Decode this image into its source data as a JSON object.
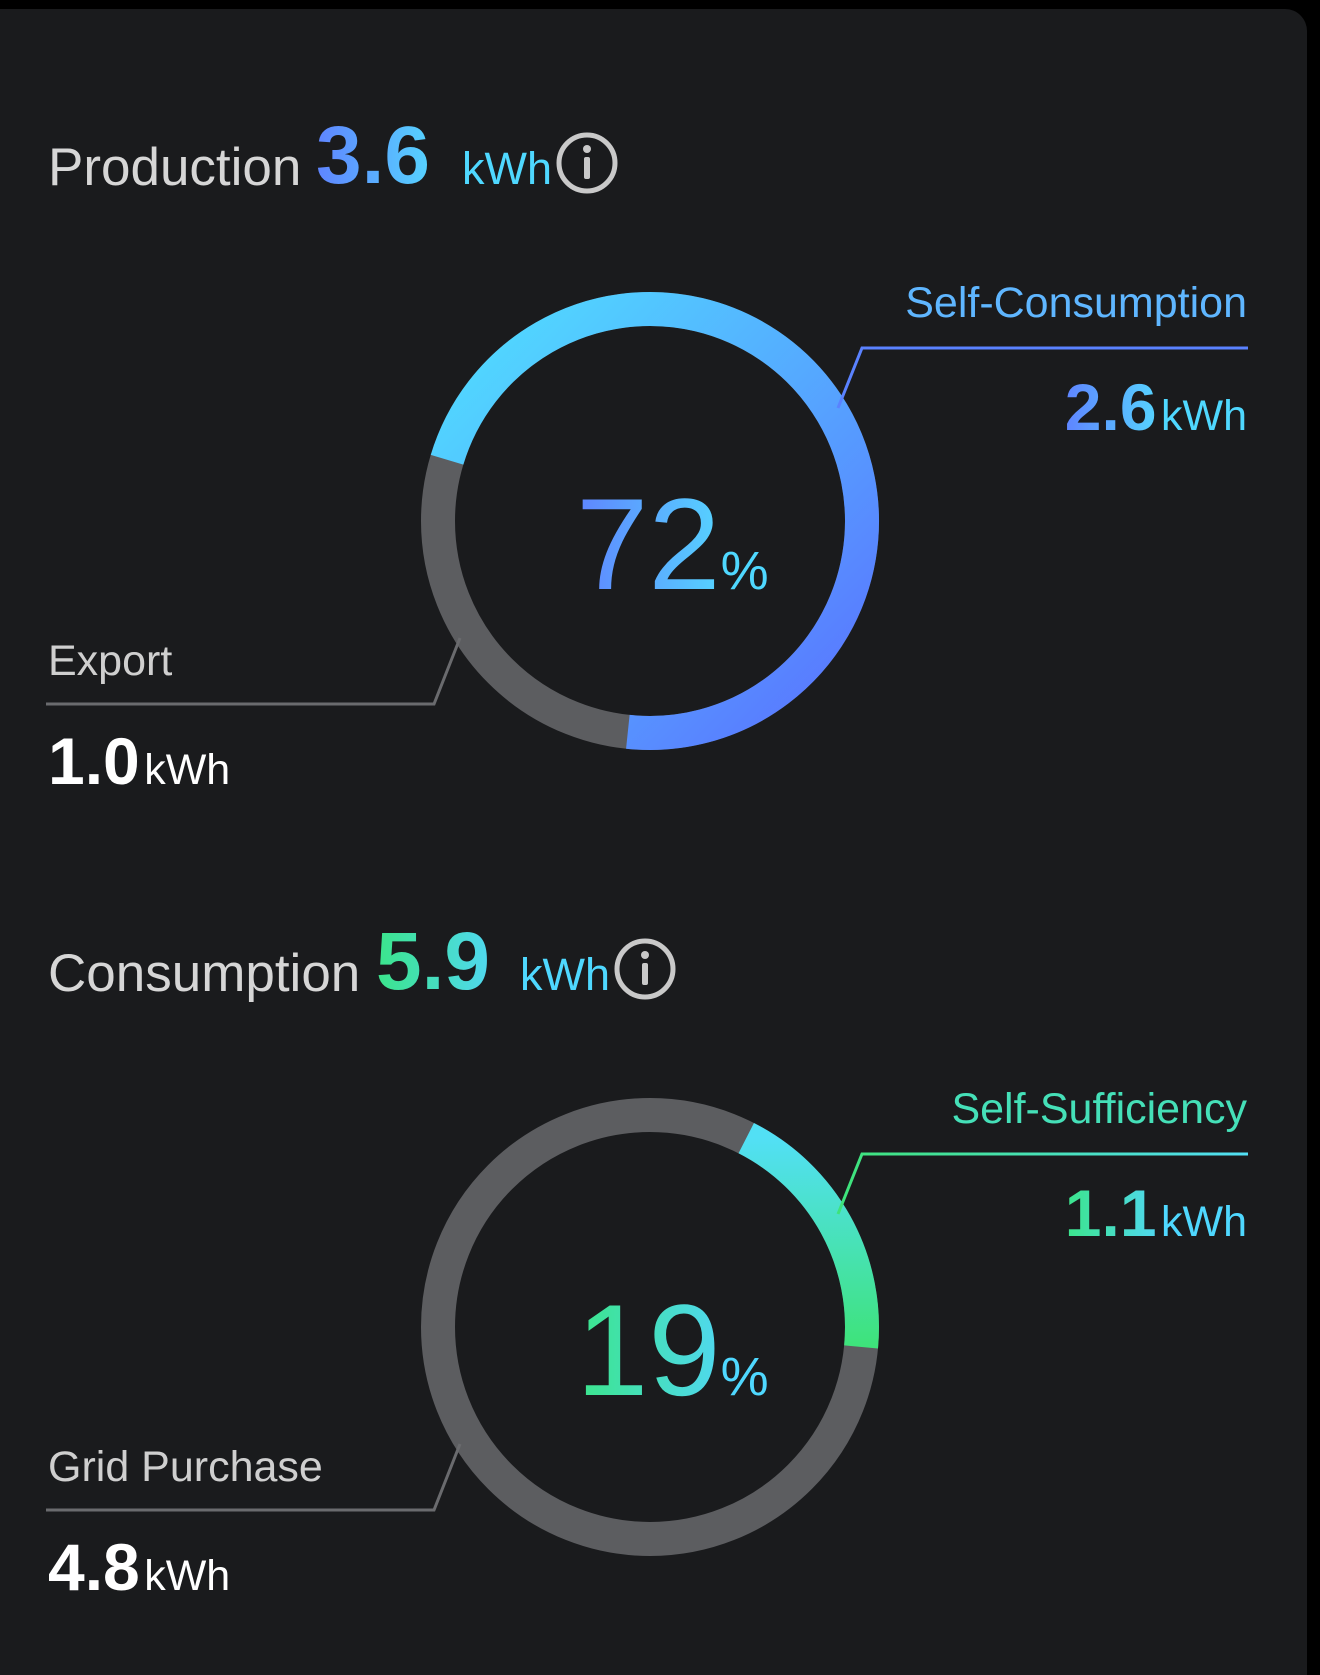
{
  "production": {
    "label": "Production",
    "value": "3.6",
    "unit": "kWh",
    "info_icon": "info-circle-icon",
    "ring": {
      "percent_value": "72",
      "percent_sign": "%",
      "fraction": 0.72
    },
    "self_consumption": {
      "label": "Self-Consumption",
      "value": "2.6",
      "unit": "kWh"
    },
    "export": {
      "label": "Export",
      "value": "1.0",
      "unit": "kWh"
    }
  },
  "consumption": {
    "label": "Consumption",
    "value": "5.9",
    "unit": "kWh",
    "info_icon": "info-circle-icon",
    "ring": {
      "percent_value": "19",
      "percent_sign": "%",
      "fraction": 0.19
    },
    "self_sufficiency": {
      "label": "Self-Sufficiency",
      "value": "1.1",
      "unit": "kWh"
    },
    "grid_purchase": {
      "label": "Grid Purchase",
      "value": "4.8",
      "unit": "kWh"
    }
  },
  "colors": {
    "card_bg": "#1a1b1d",
    "track": "#5c5d60",
    "blue_start": "#5a78ff",
    "blue_end": "#50e0ff",
    "green_start": "#3ee37a",
    "green_end": "#52e0f5"
  }
}
